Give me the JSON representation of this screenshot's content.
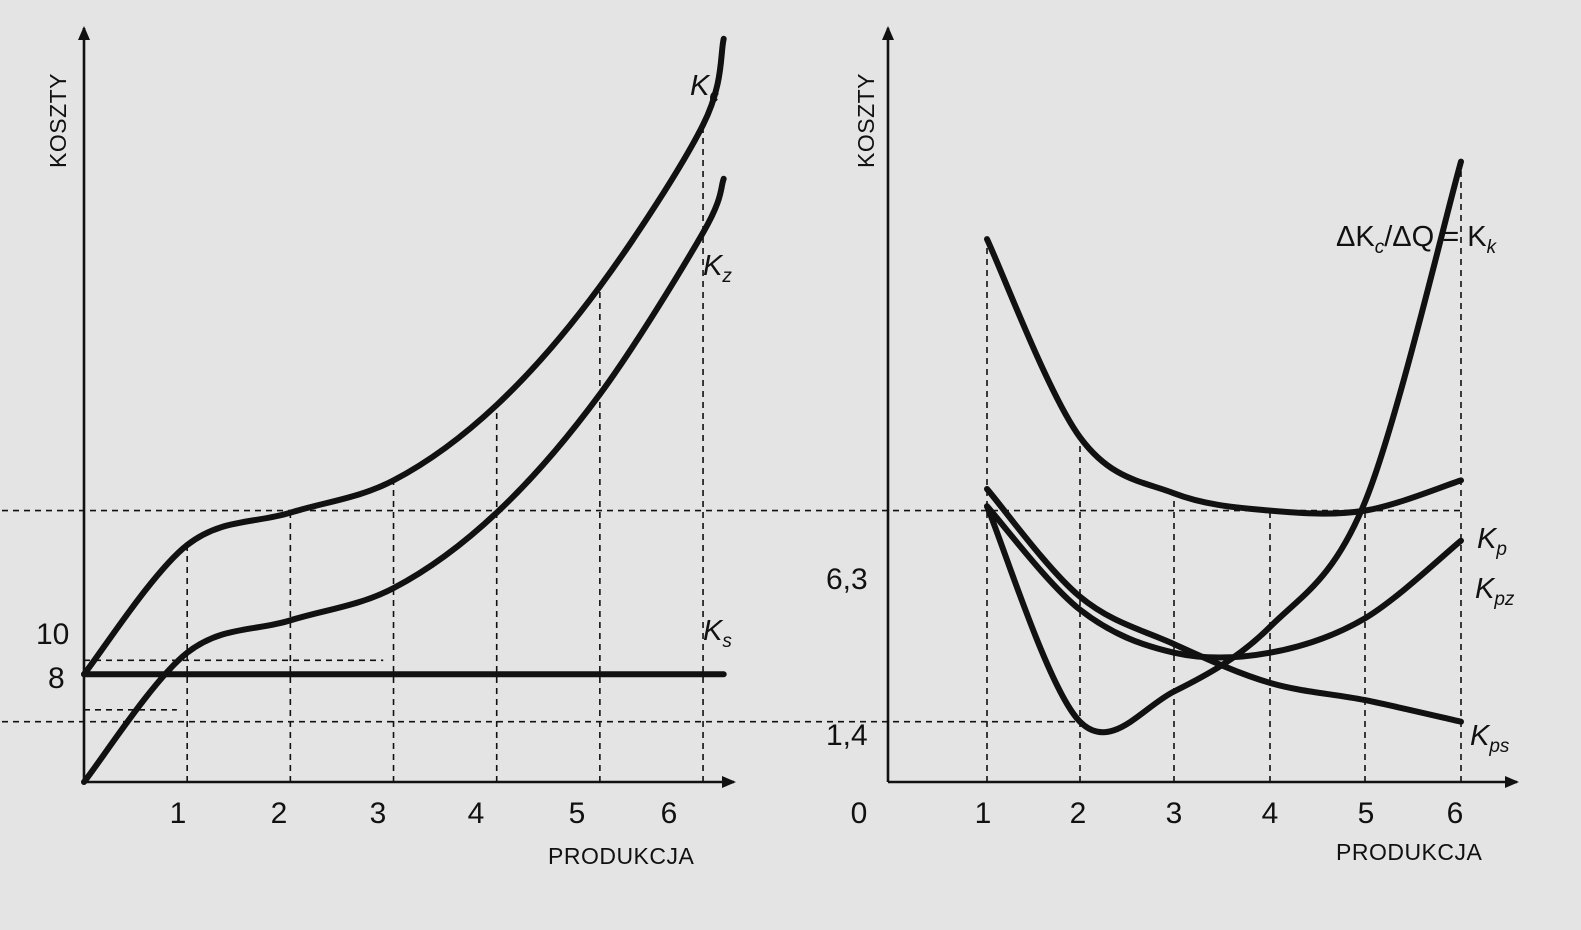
{
  "chart_data": [
    {
      "type": "line",
      "ylabel": "KOSZTY",
      "xlabel": "PRODUKCJA",
      "x_ticks": [
        "1",
        "2",
        "3",
        "4",
        "5",
        "6"
      ],
      "y_ticks": [
        "10",
        "8"
      ],
      "xlim": [
        0,
        6.3
      ],
      "ylim": [
        0,
        70
      ],
      "series": [
        {
          "name": "Kc",
          "label_main": "K",
          "label_sub": "c",
          "x": [
            0,
            1,
            2,
            3,
            4,
            5,
            6,
            6.2
          ],
          "y": [
            10,
            22,
            25,
            28,
            35,
            46,
            61,
            69
          ]
        },
        {
          "name": "Kz",
          "label_main": "K",
          "label_sub": "z",
          "x": [
            0,
            1,
            2,
            3,
            4,
            5,
            6,
            6.2
          ],
          "y": [
            0,
            12,
            15,
            18,
            25,
            36,
            51,
            56
          ]
        },
        {
          "name": "Ks",
          "label_main": "K",
          "label_sub": "s",
          "x": [
            0,
            6.2
          ],
          "y": [
            10,
            10
          ]
        }
      ]
    },
    {
      "type": "line",
      "ylabel": "KOSZTY",
      "xlabel": "PRODUKCJA",
      "origin_label": "0",
      "x_ticks": [
        "1",
        "2",
        "3",
        "4",
        "5",
        "6"
      ],
      "y_ticks": [
        "6,3",
        "1,4"
      ],
      "xlim": [
        0,
        6.5
      ],
      "ylim": [
        0,
        17.5
      ],
      "series": [
        {
          "name": "Kp",
          "label_main": "K",
          "label_sub": "p",
          "x": [
            1,
            2,
            3,
            4,
            5,
            6
          ],
          "y": [
            12.6,
            8,
            6.7,
            6.3,
            6.3,
            7.0
          ]
        },
        {
          "name": "Kpz",
          "label_main": "K",
          "label_sub": "pz",
          "x": [
            1,
            2,
            3,
            4,
            5,
            6
          ],
          "y": [
            6.4,
            4.0,
            3.0,
            3.0,
            3.8,
            5.6
          ]
        },
        {
          "name": "Kps",
          "label_main": "K",
          "label_sub": "ps",
          "x": [
            1,
            2,
            3,
            4,
            5,
            6
          ],
          "y": [
            6.8,
            4.3,
            3.2,
            2.3,
            1.9,
            1.4
          ]
        },
        {
          "name": "Kk",
          "label_main": "ΔK",
          "label_sub": "c",
          "label_rest": "/ΔQ = K",
          "label_sub2": "k",
          "x": [
            1,
            2,
            3,
            4,
            5,
            6
          ],
          "y": [
            6.4,
            1.4,
            2.1,
            3.6,
            6.5,
            14.4
          ]
        }
      ]
    }
  ]
}
